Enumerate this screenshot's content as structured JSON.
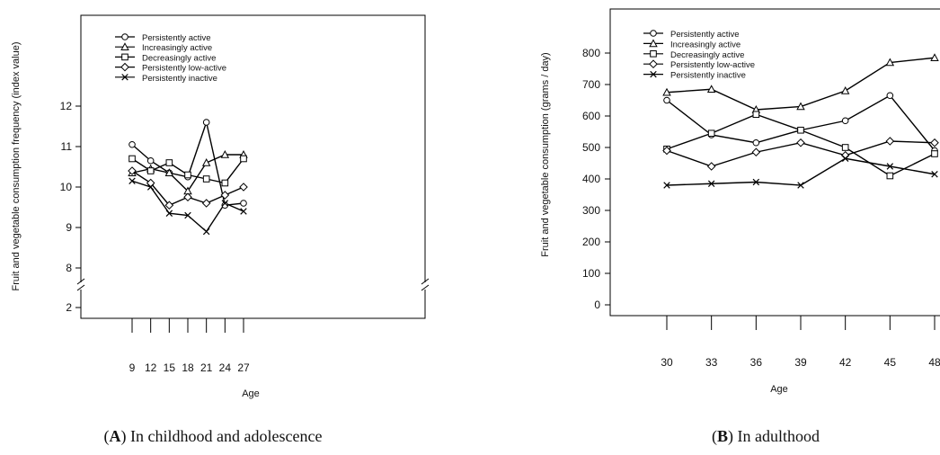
{
  "chart_data": [
    {
      "type": "line",
      "caption_letter": "A",
      "caption_text": " In childhood and adolescence",
      "ylabel": "Fruit and vegetable consumption frequency (index value)",
      "xlabel": "Age",
      "x": [
        9,
        12,
        15,
        18,
        21,
        24,
        27
      ],
      "y_ticks": [
        2,
        8,
        9,
        10,
        11,
        12
      ],
      "axis_break": true,
      "legend_position": "top-left",
      "series": [
        {
          "name": "Persistently active",
          "marker": "circle",
          "values": [
            11.05,
            10.65,
            10.35,
            10.25,
            11.6,
            9.55,
            9.6
          ]
        },
        {
          "name": "Increasingly active",
          "marker": "triangle",
          "values": [
            10.35,
            10.45,
            10.35,
            9.9,
            10.6,
            10.8,
            10.8
          ]
        },
        {
          "name": "Decreasingly active",
          "marker": "square",
          "values": [
            10.7,
            10.4,
            10.6,
            10.3,
            10.2,
            10.1,
            10.7
          ]
        },
        {
          "name": "Persistently low-active",
          "marker": "diamond",
          "values": [
            10.4,
            10.1,
            9.55,
            9.75,
            9.6,
            9.8,
            10.0
          ]
        },
        {
          "name": "Persistently inactive",
          "marker": "cross",
          "values": [
            10.15,
            10.0,
            9.35,
            9.3,
            8.9,
            9.6,
            9.4
          ]
        }
      ]
    },
    {
      "type": "line",
      "caption_letter": "B",
      "caption_text": " In adulthood",
      "ylabel": "Fruit and vegetable consumption (grams / day)",
      "xlabel": "Age",
      "x": [
        30,
        33,
        36,
        39,
        42,
        45,
        48
      ],
      "tick_labels": [
        "30",
        "33",
        "36",
        "39",
        "42",
        "45",
        "48"
      ],
      "y_ticks": [
        0,
        100,
        200,
        300,
        400,
        500,
        600,
        700,
        800
      ],
      "ylim": [
        0,
        900
      ],
      "legend_position": "top-left",
      "series": [
        {
          "name": "Persistently active",
          "marker": "circle",
          "values": [
            650,
            540,
            515,
            555,
            585,
            665,
            490
          ]
        },
        {
          "name": "Increasingly active",
          "marker": "triangle",
          "values": [
            675,
            685,
            620,
            630,
            680,
            770,
            785
          ]
        },
        {
          "name": "Decreasingly active",
          "marker": "square",
          "values": [
            495,
            545,
            605,
            555,
            500,
            410,
            480
          ]
        },
        {
          "name": "Persistently low-active",
          "marker": "diamond",
          "values": [
            490,
            440,
            485,
            515,
            475,
            520,
            515
          ]
        },
        {
          "name": "Persistently inactive",
          "marker": "cross",
          "values": [
            380,
            385,
            390,
            380,
            465,
            440,
            415
          ]
        }
      ]
    }
  ]
}
